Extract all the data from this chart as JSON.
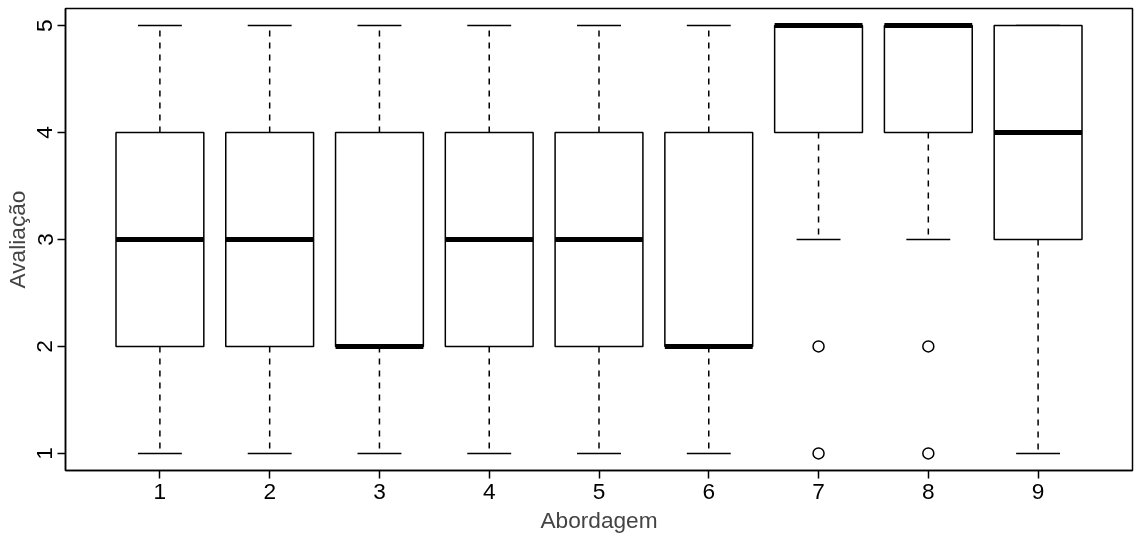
{
  "chart_data": {
    "type": "box",
    "xlabel": "Abordagem",
    "ylabel": "Avaliação",
    "categories": [
      "1",
      "2",
      "3",
      "4",
      "5",
      "6",
      "7",
      "8",
      "9"
    ],
    "ylim": [
      0.84,
      5.16
    ],
    "yticks": [
      1,
      2,
      3,
      4,
      5
    ],
    "grid": false,
    "line_style": "dashed",
    "boxes": [
      {
        "low": 1,
        "q1": 2,
        "median": 3,
        "q3": 4,
        "high": 5
      },
      {
        "low": 1,
        "q1": 2,
        "median": 3,
        "q3": 4,
        "high": 5
      },
      {
        "low": 1,
        "q1": 2,
        "median": 2,
        "q3": 4,
        "high": 5
      },
      {
        "low": 1,
        "q1": 2,
        "median": 3,
        "q3": 4,
        "high": 5
      },
      {
        "low": 1,
        "q1": 2,
        "median": 3,
        "q3": 4,
        "high": 5
      },
      {
        "low": 1,
        "q1": 2,
        "median": 2,
        "q3": 4,
        "high": 5
      },
      {
        "low": 3,
        "q1": 4,
        "median": 5,
        "q3": 5,
        "high": 5,
        "outliers": [
          2,
          1
        ]
      },
      {
        "low": 3,
        "q1": 4,
        "median": 5,
        "q3": 5,
        "high": 5,
        "outliers": [
          2,
          1
        ]
      },
      {
        "low": 1,
        "q1": 3,
        "median": 4,
        "q3": 5,
        "high": 5
      }
    ]
  }
}
